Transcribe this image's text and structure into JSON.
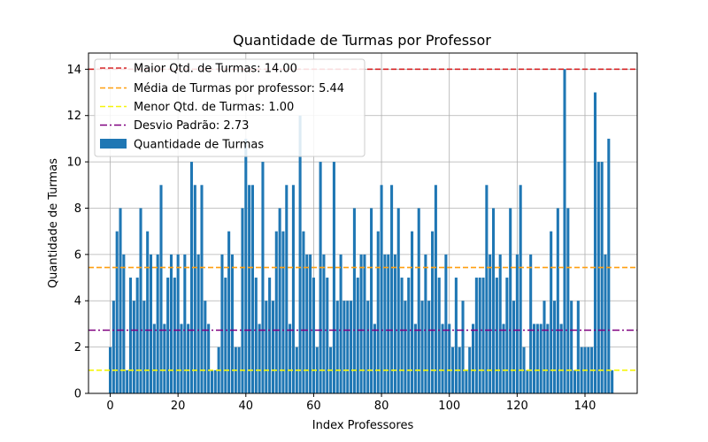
{
  "chart_data": {
    "type": "bar",
    "title": "Quantidade de Turmas por Professor",
    "xlabel": "Index Professores",
    "ylabel": "Quantidade de Turmas",
    "xlim": [
      -6.4,
      155.4
    ],
    "ylim": [
      0,
      14.7
    ],
    "xticks": [
      0,
      20,
      40,
      60,
      80,
      100,
      120,
      140
    ],
    "yticks": [
      0,
      2,
      4,
      6,
      8,
      10,
      12,
      14
    ],
    "grid": true,
    "legend_position": "top-left",
    "bar_color": "#1f77b4",
    "bar_series_name": "Quantidade de Turmas",
    "x": [
      0,
      1,
      2,
      3,
      4,
      5,
      6,
      7,
      8,
      9,
      10,
      11,
      12,
      13,
      14,
      15,
      16,
      17,
      18,
      19,
      20,
      21,
      22,
      23,
      24,
      25,
      26,
      27,
      28,
      29,
      30,
      31,
      32,
      33,
      34,
      35,
      36,
      37,
      38,
      39,
      40,
      41,
      42,
      43,
      44,
      45,
      46,
      47,
      48,
      49,
      50,
      51,
      52,
      53,
      54,
      55,
      56,
      57,
      58,
      59,
      60,
      61,
      62,
      63,
      64,
      65,
      66,
      67,
      68,
      69,
      70,
      71,
      72,
      73,
      74,
      75,
      76,
      77,
      78,
      79,
      80,
      81,
      82,
      83,
      84,
      85,
      86,
      87,
      88,
      89,
      90,
      91,
      92,
      93,
      94,
      95,
      96,
      97,
      98,
      99,
      100,
      101,
      102,
      103,
      104,
      105,
      106,
      107,
      108,
      109,
      110,
      111,
      112,
      113,
      114,
      115,
      116,
      117,
      118,
      119,
      120,
      121,
      122,
      123,
      124,
      125,
      126,
      127,
      128,
      129,
      130,
      131,
      132,
      133,
      134,
      135,
      136,
      137,
      138,
      139,
      140,
      141,
      142,
      143,
      144,
      145,
      146,
      147,
      148
    ],
    "values": [
      2,
      4,
      7,
      8,
      6,
      1,
      5,
      4,
      5,
      8,
      4,
      7,
      6,
      3,
      6,
      9,
      3,
      5,
      6,
      5,
      6,
      3,
      6,
      3,
      10,
      9,
      6,
      9,
      4,
      3,
      1,
      1,
      2,
      6,
      5,
      7,
      6,
      2,
      2,
      8,
      11,
      9,
      9,
      5,
      3,
      10,
      4,
      5,
      4,
      7,
      8,
      7,
      9,
      3,
      9,
      2,
      12,
      7,
      6,
      6,
      5,
      2,
      10,
      6,
      5,
      2,
      10,
      4,
      6,
      4,
      4,
      4,
      8,
      5,
      6,
      6,
      4,
      8,
      3,
      7,
      9,
      6,
      6,
      9,
      6,
      8,
      5,
      4,
      5,
      7,
      3,
      8,
      4,
      6,
      4,
      7,
      9,
      5,
      3,
      6,
      3,
      2,
      5,
      2,
      4,
      1,
      2,
      3,
      5,
      5,
      5,
      9,
      6,
      8,
      5,
      6,
      3,
      5,
      8,
      4,
      6,
      9,
      2,
      1,
      6,
      3,
      3,
      3,
      4,
      3,
      7,
      4,
      8,
      3,
      14,
      8,
      4,
      1,
      4,
      2,
      2,
      2,
      2,
      13,
      10,
      10,
      6,
      11,
      1
    ],
    "reference_lines": [
      {
        "label": "Maior Qtd. de Turmas: 14.00",
        "y": 14.0,
        "color": "#d62728",
        "dash": "6,3"
      },
      {
        "label": "Média de Turmas por professor: 5.44",
        "y": 5.44,
        "color": "#ff9f10",
        "dash": "6,3"
      },
      {
        "label": "Menor Qtd. de Turmas: 1.00",
        "y": 1.0,
        "color": "#f5f50a",
        "dash": "6,3"
      },
      {
        "label": "Desvio Padrão: 2.73",
        "y": 2.73,
        "color": "#800080",
        "dash": "8,3,2,3"
      }
    ]
  }
}
